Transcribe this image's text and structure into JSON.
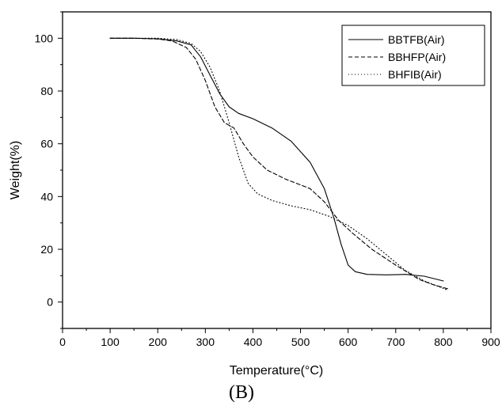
{
  "chart_data": {
    "type": "line",
    "xlabel": "Temperature(°C)",
    "ylabel": "Weight(%)",
    "caption": "(B)",
    "xlim": [
      0,
      900
    ],
    "ylim": [
      -10,
      110
    ],
    "xticks": [
      0,
      100,
      200,
      300,
      400,
      500,
      600,
      700,
      800,
      900
    ],
    "yticks": [
      0,
      20,
      40,
      60,
      80,
      100
    ],
    "grid": false,
    "legend_position": "top-right",
    "series": [
      {
        "name": "BBTFB(Air)",
        "style": "solid",
        "x": [
          100,
          150,
          200,
          240,
          270,
          290,
          310,
          330,
          350,
          370,
          400,
          440,
          480,
          520,
          550,
          570,
          585,
          600,
          615,
          640,
          680,
          720,
          760,
          800
        ],
        "y": [
          100,
          100,
          99.8,
          99,
          97.5,
          93,
          86,
          79,
          74,
          71.5,
          69.5,
          66,
          61,
          53,
          43,
          32,
          22,
          14,
          11.5,
          10.5,
          10.3,
          10.5,
          9.8,
          8
        ]
      },
      {
        "name": "BBHFP(Air)",
        "style": "dashed",
        "x": [
          100,
          150,
          200,
          230,
          260,
          280,
          300,
          320,
          340,
          360,
          380,
          400,
          430,
          470,
          520,
          550,
          580,
          610,
          650,
          700,
          750,
          780,
          810
        ],
        "y": [
          100,
          100,
          99.7,
          99,
          96.5,
          92,
          84,
          74,
          68,
          66,
          60,
          55,
          50,
          46.5,
          43,
          38,
          31,
          26,
          20,
          14,
          8.5,
          6.5,
          5
        ]
      },
      {
        "name": "BHFIB(Air)",
        "style": "dotted",
        "x": [
          100,
          150,
          200,
          240,
          270,
          290,
          310,
          330,
          350,
          370,
          390,
          410,
          440,
          480,
          520,
          560,
          600,
          640,
          680,
          720,
          760,
          810
        ],
        "y": [
          100,
          100,
          100,
          99.5,
          98,
          95,
          89,
          80,
          68,
          55,
          45,
          41,
          38.5,
          36.5,
          35,
          32.5,
          29,
          24,
          18,
          12,
          8,
          4.5
        ]
      }
    ]
  }
}
